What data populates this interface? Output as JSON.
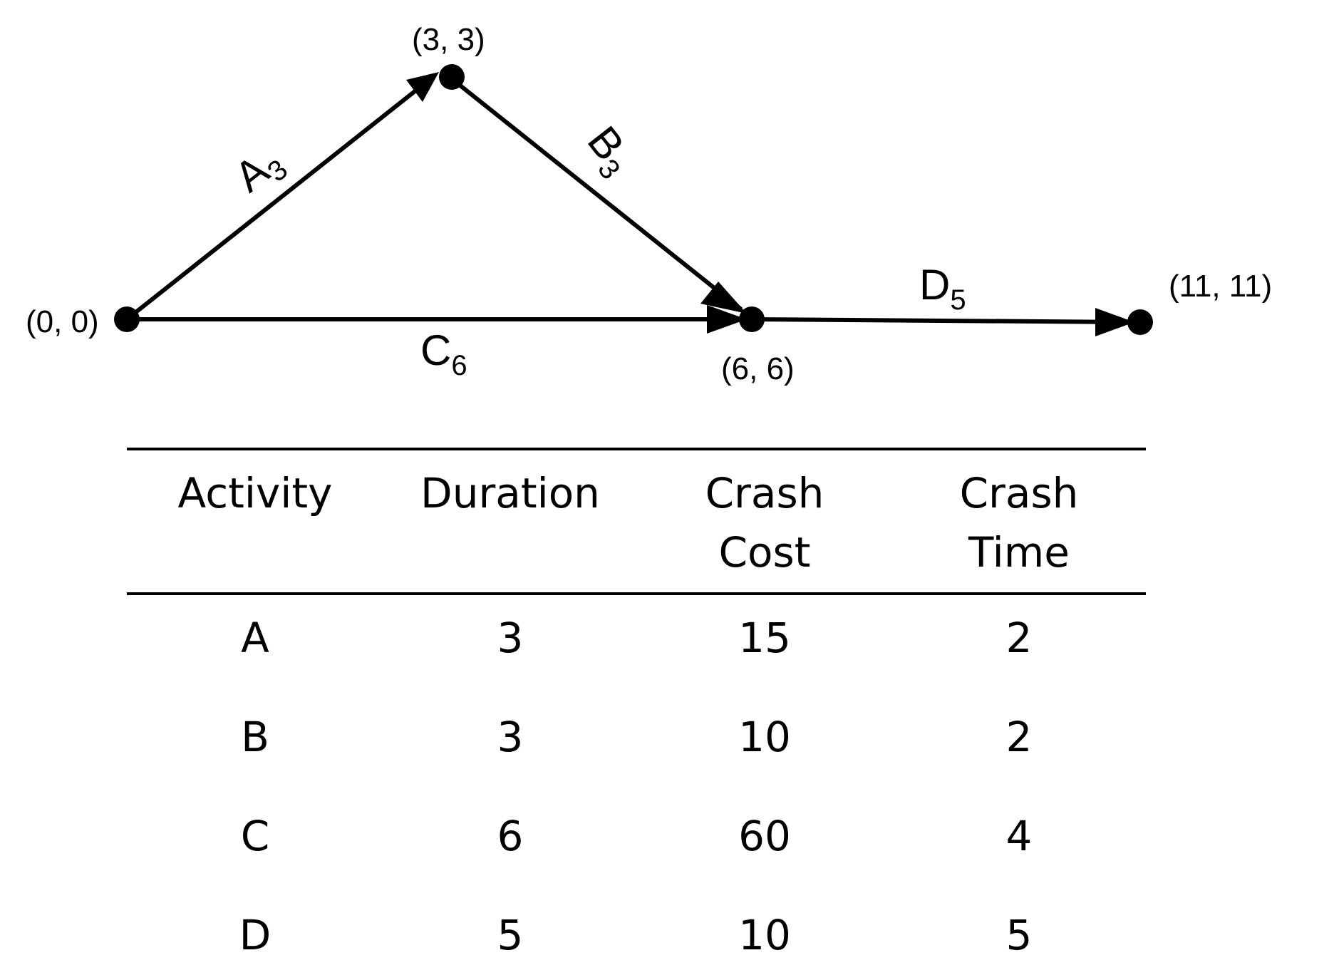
{
  "network": {
    "nodes": [
      {
        "id": "n1",
        "label": "(0, 0)"
      },
      {
        "id": "n2",
        "label": "(3, 3)"
      },
      {
        "id": "n3",
        "label": "(6, 6)"
      },
      {
        "id": "n4",
        "label": "(11, 11)"
      }
    ],
    "edges": [
      {
        "id": "A",
        "from": "n1",
        "to": "n2",
        "letter": "A",
        "sub": "3"
      },
      {
        "id": "B",
        "from": "n2",
        "to": "n3",
        "letter": "B",
        "sub": "3"
      },
      {
        "id": "C",
        "from": "n1",
        "to": "n3",
        "letter": "C",
        "sub": "6"
      },
      {
        "id": "D",
        "from": "n3",
        "to": "n4",
        "letter": "D",
        "sub": "5"
      }
    ]
  },
  "table": {
    "headers": [
      {
        "line1": "Activity",
        "line2": ""
      },
      {
        "line1": "Duration",
        "line2": ""
      },
      {
        "line1": "Crash",
        "line2": "Cost"
      },
      {
        "line1": "Crash",
        "line2": "Time"
      }
    ],
    "rows": [
      [
        "A",
        "3",
        "15",
        "2"
      ],
      [
        "B",
        "3",
        "10",
        "2"
      ],
      [
        "C",
        "6",
        "60",
        "4"
      ],
      [
        "D",
        "5",
        "10",
        "5"
      ]
    ]
  }
}
